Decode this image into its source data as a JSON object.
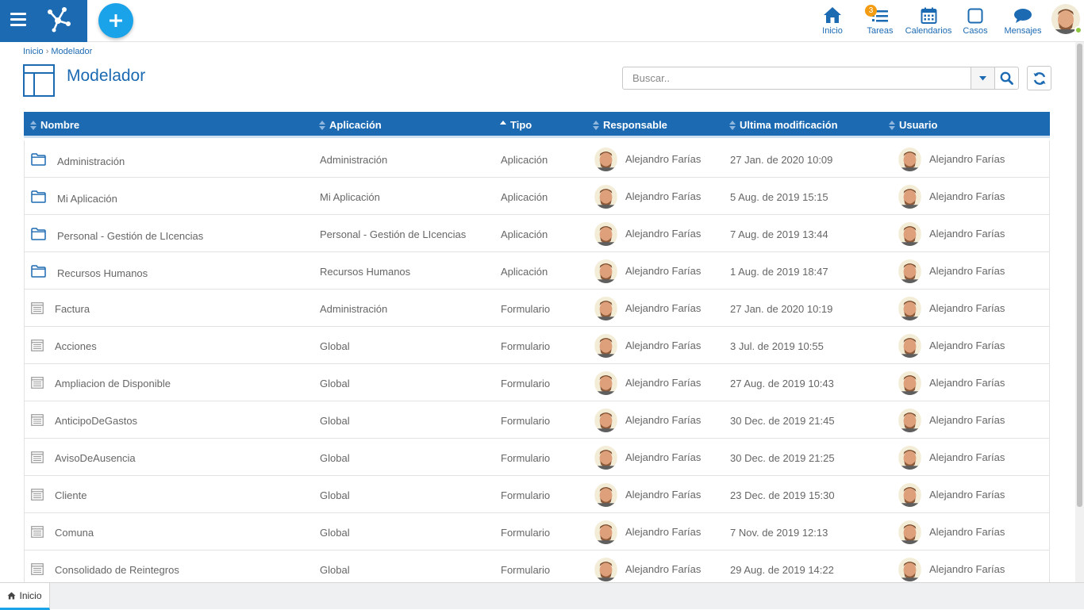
{
  "header": {
    "nav": [
      {
        "label": "Inicio",
        "icon": "home-icon"
      },
      {
        "label": "Tareas",
        "icon": "tasks-icon",
        "badge": "3"
      },
      {
        "label": "Calendarios",
        "icon": "calendar-icon"
      },
      {
        "label": "Casos",
        "icon": "cases-icon"
      },
      {
        "label": "Mensajes",
        "icon": "messages-icon"
      }
    ]
  },
  "breadcrumb": {
    "home": "Inicio",
    "separator": "›",
    "current": "Modelador"
  },
  "page": {
    "title": "Modelador"
  },
  "search": {
    "placeholder": "Buscar..",
    "value": ""
  },
  "table": {
    "columns": [
      "Nombre",
      "Aplicación",
      "Tipo",
      "Responsable",
      "Ultima modificación",
      "Usuario"
    ],
    "rows": [
      {
        "type_icon": "folder-icon",
        "name": "Administración",
        "app": "Administración",
        "tipo": "Aplicación",
        "responsable": "Alejandro Farías",
        "date": "27 Jan. de 2020 10:09",
        "usuario": "Alejandro Farías"
      },
      {
        "type_icon": "folder-icon",
        "name": "Mi Aplicación",
        "app": "Mi Aplicación",
        "tipo": "Aplicación",
        "responsable": "Alejandro Farías",
        "date": "5 Aug. de 2019 15:15",
        "usuario": "Alejandro Farías"
      },
      {
        "type_icon": "folder-icon",
        "name": "Personal - Gestión de LIcencias",
        "app": "Personal - Gestión de LIcencias",
        "tipo": "Aplicación",
        "responsable": "Alejandro Farías",
        "date": "7 Aug. de 2019 13:44",
        "usuario": "Alejandro Farías"
      },
      {
        "type_icon": "folder-icon",
        "name": "Recursos Humanos",
        "app": "Recursos Humanos",
        "tipo": "Aplicación",
        "responsable": "Alejandro Farías",
        "date": "1 Aug. de 2019 18:47",
        "usuario": "Alejandro Farías"
      },
      {
        "type_icon": "form-icon",
        "name": "Factura",
        "app": "Administración",
        "tipo": "Formulario",
        "responsable": "Alejandro Farías",
        "date": "27 Jan. de 2020 10:19",
        "usuario": "Alejandro Farías"
      },
      {
        "type_icon": "form-icon",
        "name": "Acciones",
        "app": "Global",
        "tipo": "Formulario",
        "responsable": "Alejandro Farías",
        "date": "3 Jul. de 2019 10:55",
        "usuario": "Alejandro Farías"
      },
      {
        "type_icon": "form-icon",
        "name": "Ampliacion de Disponible",
        "app": "Global",
        "tipo": "Formulario",
        "responsable": "Alejandro Farías",
        "date": "27 Aug. de 2019 10:43",
        "usuario": "Alejandro Farías"
      },
      {
        "type_icon": "form-icon",
        "name": "AnticipoDeGastos",
        "app": "Global",
        "tipo": "Formulario",
        "responsable": "Alejandro Farías",
        "date": "30 Dec. de 2019 21:45",
        "usuario": "Alejandro Farías"
      },
      {
        "type_icon": "form-icon",
        "name": "AvisoDeAusencia",
        "app": "Global",
        "tipo": "Formulario",
        "responsable": "Alejandro Farías",
        "date": "30 Dec. de 2019 21:25",
        "usuario": "Alejandro Farías"
      },
      {
        "type_icon": "form-icon",
        "name": "Cliente",
        "app": "Global",
        "tipo": "Formulario",
        "responsable": "Alejandro Farías",
        "date": "23 Dec. de 2019 15:30",
        "usuario": "Alejandro Farías"
      },
      {
        "type_icon": "form-icon",
        "name": "Comuna",
        "app": "Global",
        "tipo": "Formulario",
        "responsable": "Alejandro Farías",
        "date": "7 Nov. de 2019 12:13",
        "usuario": "Alejandro Farías"
      },
      {
        "type_icon": "form-icon",
        "name": "Consolidado de Reintegros",
        "app": "Global",
        "tipo": "Formulario",
        "responsable": "Alejandro Farías",
        "date": "29 Aug. de 2019 14:22",
        "usuario": "Alejandro Farías"
      }
    ]
  },
  "bottom_tabs": [
    {
      "label": "Inicio",
      "icon": "home-icon",
      "active": true
    }
  ],
  "colors": {
    "primary": "#1c6ab2",
    "accent": "#1aa3e8",
    "badge": "#f39c12",
    "online": "#8dc63f"
  }
}
